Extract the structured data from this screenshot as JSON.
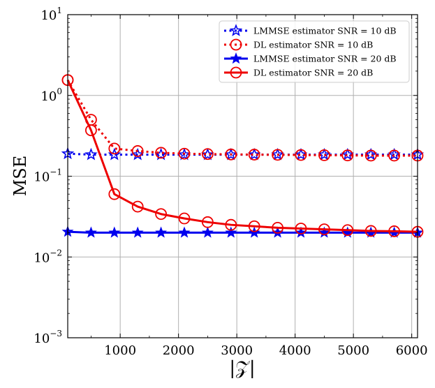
{
  "chart_data": {
    "type": "line",
    "title": "",
    "xlabel": "|𝒵|",
    "ylabel": "MSE",
    "yscale": "log",
    "xlim": [
      100,
      6100
    ],
    "ylim": [
      0.001,
      10
    ],
    "grid": true,
    "legend_position": "top-right",
    "x_ticks": [
      1000,
      2000,
      3000,
      4000,
      5000,
      6000
    ],
    "x_tick_labels": [
      "1000",
      "2000",
      "3000",
      "4000",
      "5000",
      "6000"
    ],
    "y_ticks": [
      {
        "value": 0.001,
        "base": "10",
        "exp": "−3"
      },
      {
        "value": 0.01,
        "base": "10",
        "exp": "−2"
      },
      {
        "value": 0.1,
        "base": "10",
        "exp": "−1"
      },
      {
        "value": 1,
        "base": "10",
        "exp": "0"
      },
      {
        "value": 10,
        "base": "10",
        "exp": "1"
      }
    ],
    "x": [
      100,
      500,
      900,
      1300,
      1700,
      2100,
      2500,
      2900,
      3300,
      3700,
      4100,
      4500,
      4900,
      5300,
      5700,
      6100
    ],
    "series": [
      {
        "name": "LMMSE estimator SNR = 10 dB",
        "color": "#0000ee",
        "line": "dotted",
        "marker": "star-open",
        "values": [
          0.19,
          0.185,
          0.185,
          0.185,
          0.185,
          0.185,
          0.185,
          0.185,
          0.185,
          0.185,
          0.185,
          0.185,
          0.185,
          0.185,
          0.185,
          0.185
        ]
      },
      {
        "name": "DL estimator SNR = 10 dB",
        "color": "#ee0000",
        "line": "dotted",
        "marker": "circle-open",
        "values": [
          1.55,
          0.5,
          0.22,
          0.205,
          0.195,
          0.19,
          0.188,
          0.186,
          0.185,
          0.184,
          0.183,
          0.182,
          0.181,
          0.18,
          0.18,
          0.18
        ]
      },
      {
        "name": "LMMSE estimator SNR = 20 dB",
        "color": "#0000ee",
        "line": "solid",
        "marker": "star-filled",
        "values": [
          0.0205,
          0.02,
          0.02,
          0.02,
          0.02,
          0.02,
          0.02,
          0.02,
          0.02,
          0.02,
          0.02,
          0.02,
          0.02,
          0.02,
          0.02,
          0.02
        ]
      },
      {
        "name": "DL estimator SNR = 20 dB",
        "color": "#ee0000",
        "line": "solid",
        "marker": "circle-open",
        "values": [
          1.55,
          0.37,
          0.06,
          0.042,
          0.034,
          0.03,
          0.027,
          0.025,
          0.024,
          0.023,
          0.0225,
          0.022,
          0.0215,
          0.021,
          0.0208,
          0.0205
        ]
      }
    ]
  }
}
